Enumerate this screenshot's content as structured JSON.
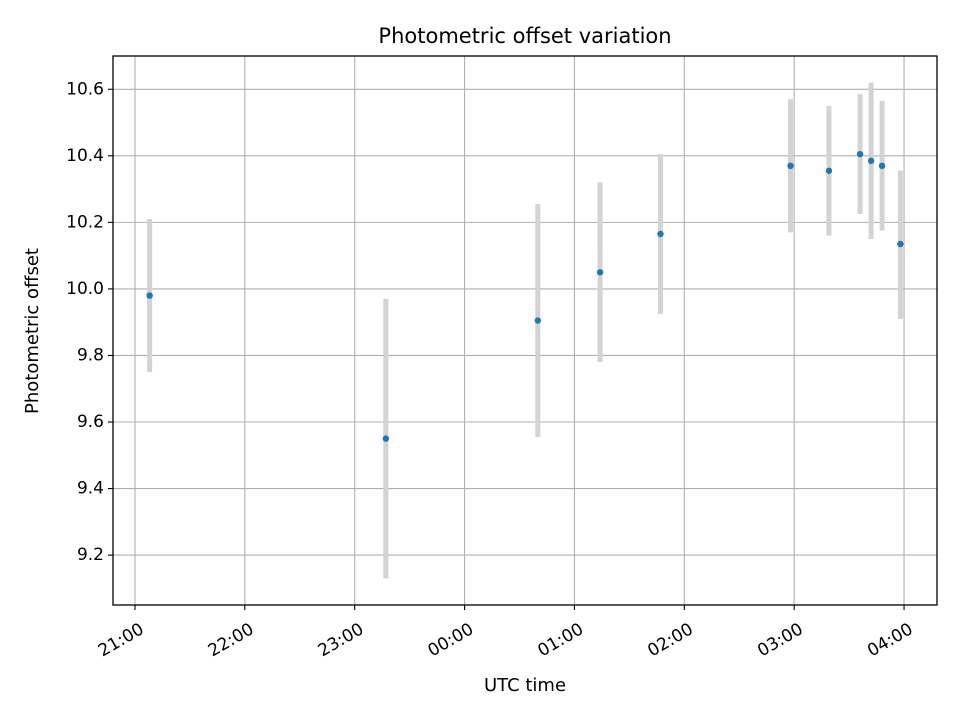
{
  "chart_data": {
    "type": "scatter",
    "title": "Photometric offset variation",
    "xlabel": "UTC time",
    "ylabel": "Photometric offset",
    "grid": true,
    "x_axis": {
      "kind": "time",
      "range": [
        "20:48",
        "04:18"
      ],
      "ticks": [
        "21:00",
        "22:00",
        "23:00",
        "00:00",
        "01:00",
        "02:00",
        "03:00",
        "04:00"
      ]
    },
    "y_axis": {
      "range": [
        9.05,
        10.7
      ],
      "ticks": [
        "9.2",
        "9.4",
        "9.6",
        "9.8",
        "10.0",
        "10.2",
        "10.4",
        "10.6"
      ]
    },
    "series": [
      {
        "marker_color": "#1f77b4",
        "errorbar_color": "#d3d3d3",
        "points": [
          {
            "x": "21:08",
            "y": 9.98,
            "yerr_low": 9.75,
            "yerr_high": 10.21
          },
          {
            "x": "23:17",
            "y": 9.55,
            "yerr_low": 9.13,
            "yerr_high": 9.97
          },
          {
            "x": "00:40",
            "y": 9.905,
            "yerr_low": 9.555,
            "yerr_high": 10.255
          },
          {
            "x": "01:14",
            "y": 10.05,
            "yerr_low": 9.78,
            "yerr_high": 10.32
          },
          {
            "x": "01:47",
            "y": 10.165,
            "yerr_low": 9.925,
            "yerr_high": 10.405
          },
          {
            "x": "02:58",
            "y": 10.37,
            "yerr_low": 10.17,
            "yerr_high": 10.57
          },
          {
            "x": "03:19",
            "y": 10.355,
            "yerr_low": 10.16,
            "yerr_high": 10.55
          },
          {
            "x": "03:36",
            "y": 10.405,
            "yerr_low": 10.225,
            "yerr_high": 10.585
          },
          {
            "x": "03:42",
            "y": 10.385,
            "yerr_low": 10.15,
            "yerr_high": 10.62
          },
          {
            "x": "03:48",
            "y": 10.37,
            "yerr_low": 10.175,
            "yerr_high": 10.565
          },
          {
            "x": "03:58",
            "y": 10.135,
            "yerr_low": 9.91,
            "yerr_high": 10.355
          }
        ]
      }
    ]
  }
}
